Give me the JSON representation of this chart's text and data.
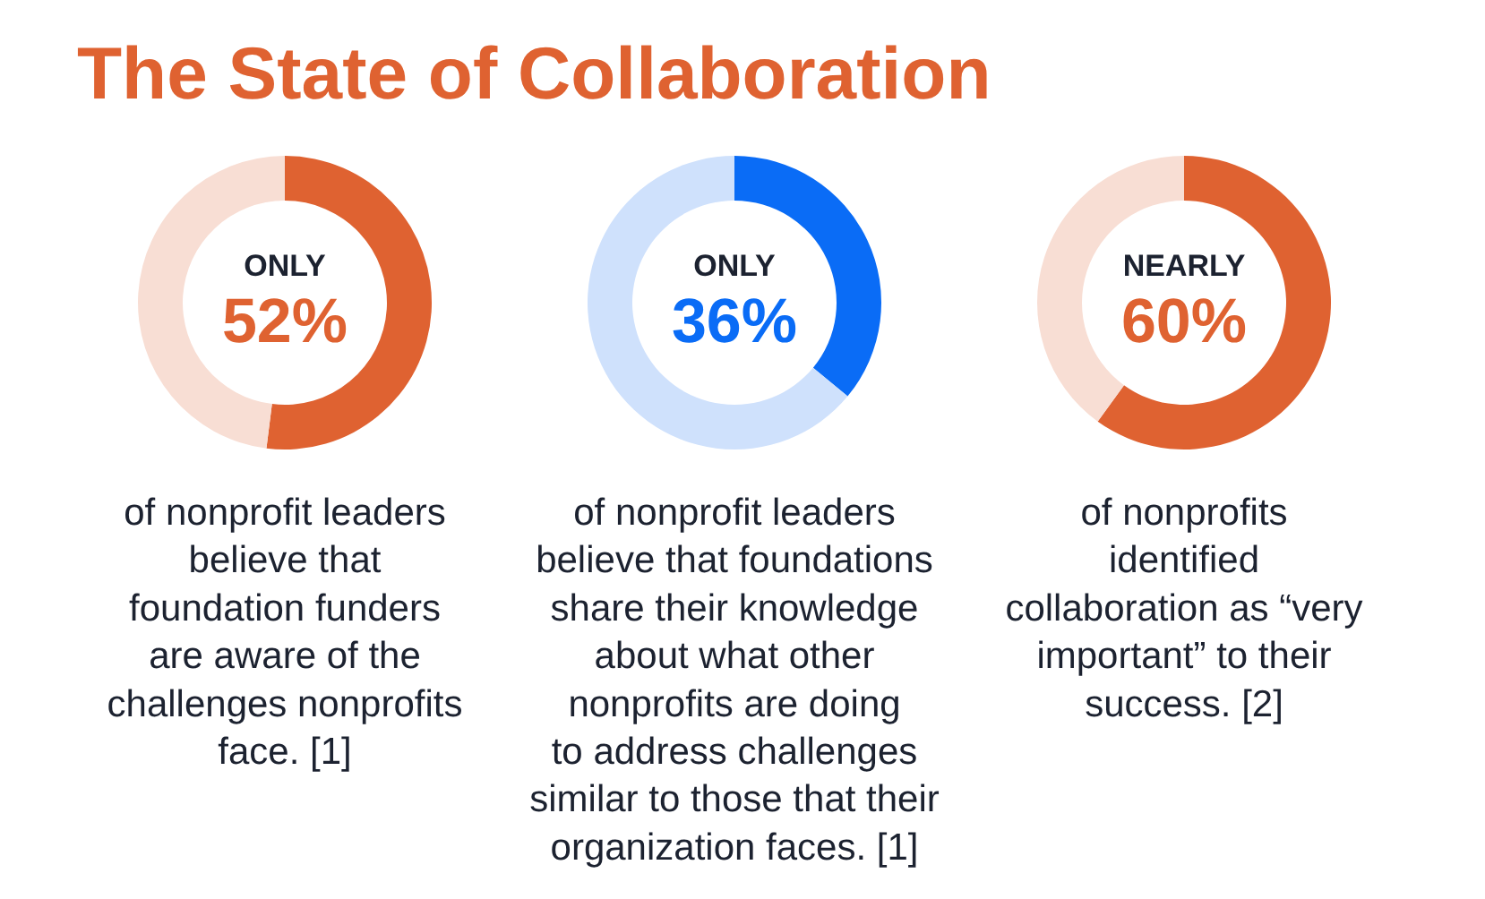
{
  "chart_data": [
    {
      "type": "donut",
      "title": "The State of Collaboration",
      "categories": [
        null,
        null
      ],
      "values": [
        52,
        48
      ],
      "colors": [
        "#df6231",
        "#f8ded4"
      ],
      "annotations": [
        "ONLY",
        "52%",
        "of nonprofit leaders\nbelieve that\nfoundation funders\nare aware of the\nchallenges nonprofits\nface. [1]"
      ]
    },
    {
      "type": "donut",
      "categories": [
        null,
        null
      ],
      "values": [
        36,
        64
      ],
      "colors": [
        "#0a6cf6",
        "#cfe1fc"
      ],
      "annotations": [
        "ONLY",
        "36%",
        "of nonprofit leaders\nbelieve that foundations\nshare their knowledge\nabout what other\nnonprofits are doing\nto address challenges\nsimilar to those that their\norganization faces. [1]"
      ]
    },
    {
      "type": "donut",
      "categories": [
        null,
        null
      ],
      "values": [
        60,
        40
      ],
      "colors": [
        "#df6231",
        "#f8ded4"
      ],
      "annotations": [
        "NEARLY",
        "60%",
        "of nonprofits\nidentified\ncollaboration as “very\nimportant” to their\nsuccess. [2]"
      ]
    }
  ]
}
